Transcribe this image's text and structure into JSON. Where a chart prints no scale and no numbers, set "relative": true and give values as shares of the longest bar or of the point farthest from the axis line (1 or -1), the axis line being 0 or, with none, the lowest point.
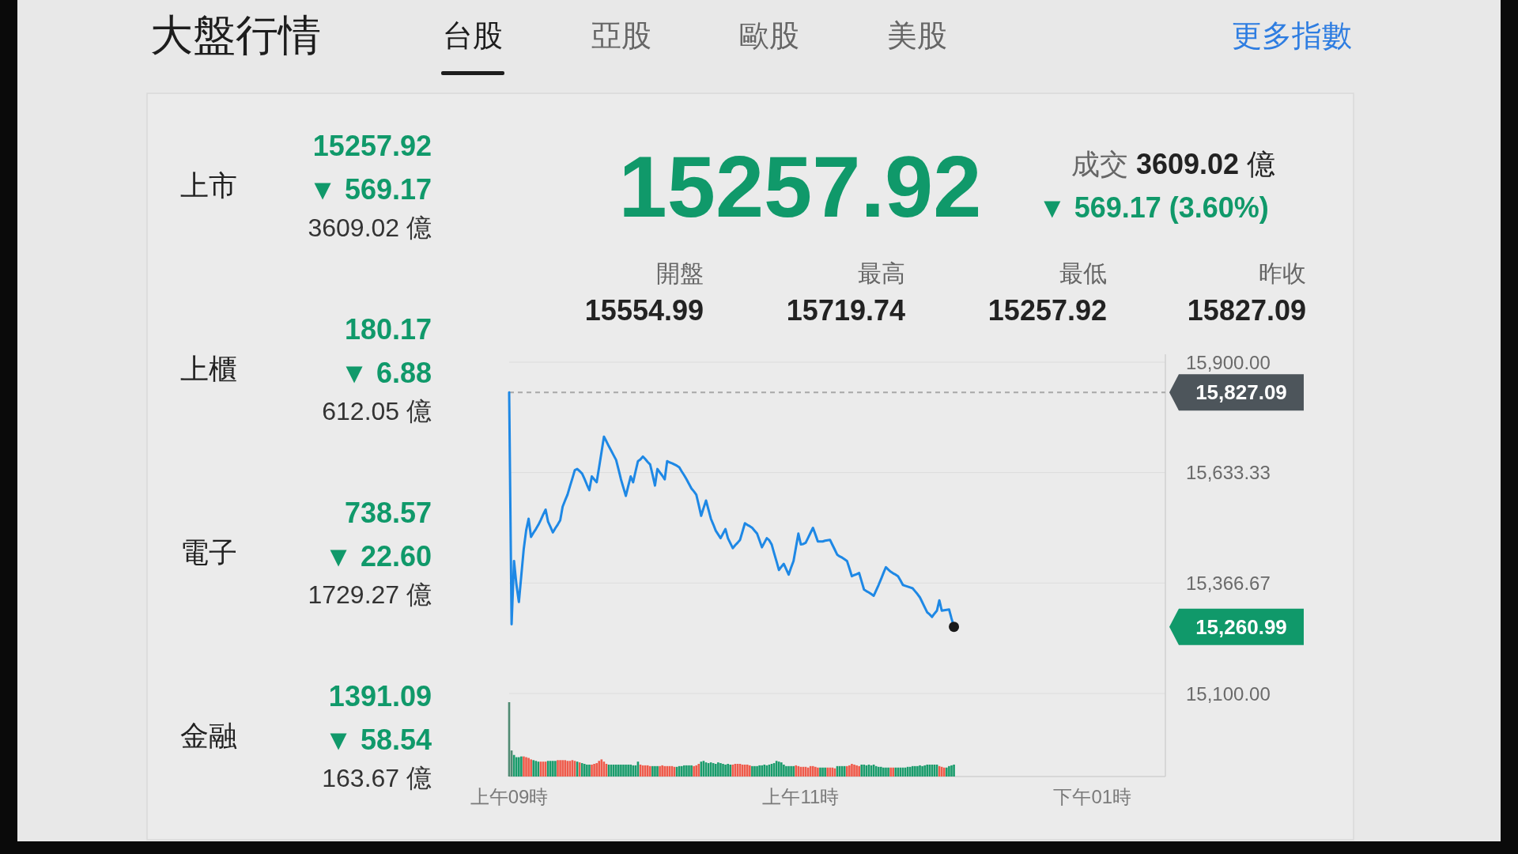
{
  "chart_data": [
    {
      "type": "other",
      "title": "大盤行情",
      "annotations": [
        "台股",
        "亞股",
        "歐股",
        "美股",
        "更多指數"
      ]
    },
    {
      "type": "other",
      "annotations": [
        "上市",
        "15257.92",
        "▼ 569.17",
        "3609.02 億",
        "上櫃",
        "180.17",
        "▼ 6.88",
        "612.05 億",
        "電子",
        "738.57",
        "▼ 22.60",
        "1729.27 億",
        "金融",
        "1391.09",
        "▼ 58.54",
        "163.67 億"
      ]
    },
    {
      "type": "other",
      "annotations": [
        "15257.92",
        "成交 3609.02 億",
        "▼ 569.17 (3.60%)",
        "開盤",
        "15554.99",
        "最高",
        "15719.74",
        "最低",
        "15257.92",
        "昨收",
        "15827.09"
      ]
    },
    {
      "type": "line",
      "color": "#1e88e5",
      "ylim": [
        15100,
        15900
      ],
      "grid": "y",
      "yticks": [
        {
          "value": 15100,
          "label": "15,100.00"
        },
        {
          "value": 15366.67,
          "label": "15,366.67"
        },
        {
          "value": 15633.33,
          "label": "15,633.33"
        },
        {
          "value": 15900,
          "label": "15,900.00"
        }
      ],
      "ref_lines": [
        {
          "axis": "y",
          "value": 15827.09,
          "label": "15,827.09",
          "color": "#a8a8a8",
          "line_style": "dashed"
        }
      ],
      "annotations": [
        "15,260.99"
      ],
      "categories": [
        null,
        null,
        null,
        null,
        null,
        null,
        null,
        null,
        null,
        null,
        null,
        null,
        null,
        null,
        null,
        null,
        null,
        null,
        null,
        null,
        null,
        null,
        null,
        null,
        null,
        null,
        null,
        null,
        null,
        null,
        null,
        null,
        null,
        null,
        null,
        null,
        null,
        null,
        null,
        null,
        null,
        null,
        null,
        null,
        null,
        null,
        null,
        null,
        null,
        null,
        null,
        null,
        null,
        null,
        null,
        null,
        null,
        null,
        null,
        null,
        null,
        null,
        null,
        null,
        null,
        null,
        null,
        null,
        null,
        null,
        null,
        null,
        null,
        null,
        null,
        null,
        null,
        null,
        null,
        null,
        null,
        null,
        null,
        null,
        null,
        null,
        null,
        null,
        null,
        null,
        null,
        null,
        null,
        null,
        null,
        null,
        null,
        null,
        null,
        null,
        null,
        null,
        null,
        null,
        null,
        null,
        null,
        null,
        null,
        null,
        null,
        null,
        null,
        null,
        null,
        null,
        null,
        null,
        null,
        null,
        null,
        null,
        null,
        null,
        null,
        null,
        null,
        null,
        null,
        null,
        null,
        null,
        null,
        null,
        null,
        null,
        null,
        null,
        null,
        null,
        null,
        null,
        null,
        null,
        null,
        null,
        null,
        null,
        null,
        null,
        null,
        null,
        null,
        null,
        null,
        null,
        null,
        null,
        null,
        null,
        null,
        null,
        null,
        null,
        null,
        null,
        null,
        null,
        null,
        null,
        null,
        null,
        null,
        null,
        null,
        null,
        null,
        null,
        null,
        null,
        null,
        null,
        null,
        null,
        null,
        null,
        null,
        null,
        null,
        null,
        null,
        null,
        null,
        null,
        null,
        null,
        null,
        null,
        null,
        null,
        null,
        null,
        null,
        null,
        null,
        null,
        null,
        null,
        null,
        null,
        null,
        null,
        null,
        null,
        null,
        null,
        null,
        null,
        null,
        null,
        null,
        null,
        null,
        null,
        null,
        null,
        null,
        null,
        null,
        null,
        null,
        null,
        null,
        null,
        null,
        null,
        null,
        null,
        null,
        null,
        null,
        null,
        null,
        null,
        null,
        null,
        null,
        null,
        null,
        null,
        null,
        null,
        null,
        null,
        null,
        null,
        null,
        null,
        null,
        null,
        null,
        null,
        null,
        null,
        null,
        null,
        null,
        null,
        null,
        null,
        null
      ],
      "values": [
        15827,
        15267,
        15420,
        15362,
        15321,
        15385,
        15449,
        15494,
        15522,
        15478,
        15488,
        15497,
        15507,
        15519,
        15532,
        15544,
        15515,
        15502,
        15489,
        15499,
        15508,
        15518,
        15551,
        15566,
        15580,
        15600,
        15619,
        15639,
        15642,
        15637,
        15631,
        15618,
        15604,
        15591,
        15624,
        15617,
        15610,
        15646,
        15683,
        15720,
        15709,
        15697,
        15686,
        15675,
        15664,
        15641,
        15617,
        15597,
        15577,
        15601,
        15624,
        15610,
        15636,
        15661,
        15665,
        15672,
        15666,
        15659,
        15653,
        15628,
        15602,
        15642,
        15634,
        15626,
        15617,
        15661,
        15658,
        15656,
        15653,
        15650,
        15646,
        15636,
        15627,
        15617,
        15606,
        15595,
        15588,
        15580,
        15555,
        15529,
        15548,
        15566,
        15544,
        15522,
        15508,
        15493,
        15484,
        15475,
        15486,
        15497,
        15475,
        15463,
        15451,
        15458,
        15464,
        15471,
        15491,
        15511,
        15507,
        15504,
        15500,
        15493,
        15486,
        15470,
        15453,
        15464,
        15475,
        15470,
        15460,
        15439,
        15419,
        15398,
        15406,
        15413,
        15400,
        15387,
        15404,
        15420,
        15453,
        15486,
        15460,
        15461,
        15464,
        15476,
        15488,
        15500,
        15484,
        15467,
        15467,
        15467,
        15469,
        15470,
        15471,
        15459,
        15447,
        15435,
        15431,
        15428,
        15424,
        15420,
        15402,
        15383,
        15386,
        15388,
        15391,
        15371,
        15351,
        15347,
        15344,
        15340,
        15336,
        15349,
        15362,
        15376,
        15391,
        15405,
        15399,
        15394,
        15390,
        15387,
        15383,
        15373,
        15362,
        15360,
        15358,
        15356,
        15354,
        15347,
        15340,
        15332,
        15320,
        15308,
        15296,
        15291,
        15285,
        15293,
        15300,
        15325,
        15300,
        15301,
        15302,
        15303,
        15281,
        15261,
        null,
        null,
        null,
        null,
        null,
        null,
        null,
        null,
        null,
        null,
        null,
        null,
        null,
        null,
        null,
        null,
        null,
        null,
        null,
        null,
        null,
        null,
        null,
        null,
        null,
        null,
        null,
        null,
        null,
        null,
        null,
        null,
        null,
        null,
        null,
        null,
        null,
        null,
        null,
        null,
        null,
        null,
        null,
        null,
        null,
        null,
        null,
        null,
        null,
        null,
        null,
        null,
        null,
        null,
        null,
        null,
        null,
        null,
        null,
        null,
        null,
        null,
        null,
        null,
        null,
        null,
        null,
        null,
        null,
        null,
        null,
        null,
        null,
        null,
        null,
        null,
        null,
        null,
        null,
        null,
        null,
        null,
        null,
        null,
        null,
        null,
        null
      ]
    },
    {
      "type": "bar",
      "relative": true,
      "categories": [
        "上午09時",
        null,
        null,
        null,
        null,
        null,
        null,
        null,
        null,
        null,
        null,
        null,
        null,
        null,
        null,
        null,
        null,
        null,
        null,
        null,
        null,
        null,
        null,
        null,
        null,
        null,
        null,
        null,
        null,
        null,
        null,
        null,
        null,
        null,
        null,
        null,
        null,
        null,
        null,
        null,
        null,
        null,
        null,
        null,
        null,
        null,
        null,
        null,
        null,
        null,
        null,
        null,
        null,
        null,
        null,
        null,
        null,
        null,
        null,
        null,
        null,
        null,
        null,
        null,
        null,
        null,
        null,
        null,
        null,
        null,
        null,
        null,
        null,
        null,
        null,
        null,
        null,
        null,
        null,
        null,
        null,
        null,
        null,
        null,
        null,
        null,
        null,
        null,
        null,
        null,
        null,
        null,
        null,
        null,
        null,
        null,
        null,
        null,
        null,
        null,
        null,
        null,
        null,
        null,
        null,
        null,
        null,
        null,
        null,
        null,
        null,
        null,
        null,
        null,
        null,
        null,
        null,
        null,
        null,
        null,
        "上午11時",
        null,
        null,
        null,
        null,
        null,
        null,
        null,
        null,
        null,
        null,
        null,
        null,
        null,
        null,
        null,
        null,
        null,
        null,
        null,
        null,
        null,
        null,
        null,
        null,
        null,
        null,
        null,
        null,
        null,
        null,
        null,
        null,
        null,
        null,
        null,
        null,
        null,
        null,
        null,
        null,
        null,
        null,
        null,
        null,
        null,
        null,
        null,
        null,
        null,
        null,
        null,
        null,
        null,
        null,
        null,
        null,
        null,
        null,
        null,
        null,
        null,
        null,
        null,
        null,
        null,
        null,
        null,
        null,
        null,
        null,
        null,
        null,
        null,
        null,
        null,
        null,
        null,
        null,
        null,
        null,
        null,
        null,
        null,
        null,
        null,
        null,
        null,
        null,
        null,
        null,
        null,
        null,
        null,
        null,
        null,
        null,
        null,
        null,
        null,
        null,
        null,
        null,
        null,
        null,
        null,
        null,
        null,
        null,
        null,
        null,
        null,
        null,
        null,
        null,
        null,
        null,
        null,
        null,
        null,
        "下午01時",
        null,
        null,
        null,
        null,
        null,
        null,
        null,
        null,
        null,
        null,
        null,
        null,
        null,
        null,
        null,
        null,
        null,
        null,
        null,
        null,
        null,
        null,
        null,
        null,
        null,
        null,
        null,
        null,
        null,
        null
      ],
      "values": [
        1,
        0.35,
        0.29,
        0.26,
        0.26,
        0.27,
        0.27,
        0.26,
        0.25,
        0.23,
        0.22,
        0.21,
        0.2,
        0.2,
        0.2,
        0.2,
        0.21,
        0.21,
        0.21,
        0.21,
        0.22,
        0.22,
        0.22,
        0.22,
        0.21,
        0.21,
        0.22,
        0.21,
        0.2,
        0.19,
        0.18,
        0.17,
        0.16,
        0.16,
        0.16,
        0.17,
        0.18,
        0.21,
        0.23,
        0.2,
        0.17,
        0.16,
        0.16,
        0.16,
        0.16,
        0.16,
        0.16,
        0.16,
        0.16,
        0.16,
        0.16,
        0.15,
        0.15,
        0.2,
        0.16,
        0.15,
        0.15,
        0.15,
        0.14,
        0.14,
        0.14,
        0.14,
        0.14,
        0.15,
        0.14,
        0.14,
        0.14,
        0.14,
        0.13,
        0.13,
        0.14,
        0.14,
        0.15,
        0.15,
        0.15,
        0.15,
        0.14,
        0.15,
        0.17,
        0.2,
        0.21,
        0.19,
        0.18,
        0.19,
        0.18,
        0.17,
        0.19,
        0.18,
        0.17,
        0.16,
        0.17,
        0.16,
        0.16,
        0.17,
        0.17,
        0.17,
        0.16,
        0.16,
        0.16,
        0.15,
        0.14,
        0.14,
        0.14,
        0.15,
        0.15,
        0.16,
        0.15,
        0.16,
        0.17,
        0.18,
        0.21,
        0.2,
        0.19,
        0.16,
        0.14,
        0.14,
        0.14,
        0.14,
        0.15,
        0.14,
        0.13,
        0.13,
        0.13,
        0.12,
        0.14,
        0.14,
        0.13,
        0.12,
        0.12,
        0.12,
        0.12,
        0.12,
        0.12,
        0.12,
        0.11,
        0.14,
        0.14,
        0.14,
        0.14,
        0.14,
        0.15,
        0.17,
        0.16,
        0.15,
        0.14,
        0.16,
        0.16,
        0.15,
        0.16,
        0.15,
        0.16,
        0.14,
        0.13,
        0.13,
        0.12,
        0.12,
        0.12,
        0.12,
        0.12,
        0.12,
        0.12,
        0.12,
        0.12,
        0.12,
        0.13,
        0.13,
        0.14,
        0.14,
        0.14,
        0.15,
        0.14,
        0.15,
        0.16,
        0.16,
        0.16,
        0.16,
        0.16,
        0.14,
        0.13,
        0.12,
        0.12,
        0.14,
        0.15,
        0.16,
        null,
        null,
        null,
        null,
        null,
        null,
        null,
        null,
        null,
        null,
        null,
        null,
        null,
        null,
        null,
        null,
        null,
        null,
        null,
        null,
        null,
        null,
        null,
        null,
        null,
        null,
        null,
        null,
        null,
        null,
        null,
        null,
        null,
        null,
        null,
        null,
        null,
        null,
        null,
        null,
        null,
        null,
        null,
        null,
        null,
        null,
        null,
        null,
        null,
        null,
        null,
        null,
        null,
        null,
        null,
        null,
        null,
        null,
        null,
        null,
        null,
        null,
        null,
        null,
        null,
        null,
        null,
        null,
        null,
        null,
        null,
        null,
        null,
        null,
        null,
        null,
        null,
        null,
        null,
        null,
        null,
        null,
        null,
        null,
        null,
        null,
        null
      ],
      "colors": [
        "#4f8a72",
        "#4f8a72",
        "#1a9c6c",
        "#1a9c6c",
        "#1a9c6c",
        "#1a9c6c",
        "#ef5b4b",
        "#ef5b4b",
        "#ef5b4b",
        "#ef5b4b",
        "#1a9c6c",
        "#1a9c6c",
        "#1a9c6c",
        "#ef5b4b",
        "#ef5b4b",
        "#ef5b4b",
        "#1a9c6c",
        "#1a9c6c",
        "#1a9c6c",
        "#1a9c6c",
        "#ef5b4b",
        "#ef5b4b",
        "#ef5b4b",
        "#ef5b4b",
        "#ef5b4b",
        "#ef5b4b",
        "#ef5b4b",
        "#ef5b4b",
        "#1a9c6c",
        "#ef5b4b",
        "#1a9c6c",
        "#1a9c6c",
        "#1a9c6c",
        "#1a9c6c",
        "#ef5b4b",
        "#ef5b4b",
        "#ef5b4b",
        "#ef5b4b",
        "#ef5b4b",
        "#ef5b4b",
        "#ef5b4b",
        "#1a9c6c",
        "#1a9c6c",
        "#1a9c6c",
        "#1a9c6c",
        "#1a9c6c",
        "#1a9c6c",
        "#1a9c6c",
        "#1a9c6c",
        "#1a9c6c",
        "#1a9c6c",
        "#1a9c6c",
        "#1a9c6c",
        "#1a9c6c",
        "#ef5b4b",
        "#ef5b4b",
        "#ef5b4b",
        "#ef5b4b",
        "#ef5b4b",
        "#1a9c6c",
        "#1a9c6c",
        "#1a9c6c",
        "#ef5b4b",
        "#ef5b4b",
        "#ef5b4b",
        "#ef5b4b",
        "#ef5b4b",
        "#ef5b4b",
        "#ef5b4b",
        "#1a9c6c",
        "#1a9c6c",
        "#1a9c6c",
        "#1a9c6c",
        "#1a9c6c",
        "#1a9c6c",
        "#1a9c6c",
        "#ef5b4b",
        "#ef5b4b",
        "#ef5b4b",
        "#1a9c6c",
        "#1a9c6c",
        "#1a9c6c",
        "#1a9c6c",
        "#1a9c6c",
        "#1a9c6c",
        "#1a9c6c",
        "#1a9c6c",
        "#1a9c6c",
        "#1a9c6c",
        "#1a9c6c",
        "#1a9c6c",
        "#1a9c6c",
        "#ef5b4b",
        "#ef5b4b",
        "#ef5b4b",
        "#ef5b4b",
        "#ef5b4b",
        "#ef5b4b",
        "#ef5b4b",
        "#ef5b4b",
        "#1a9c6c",
        "#1a9c6c",
        "#1a9c6c",
        "#1a9c6c",
        "#1a9c6c",
        "#1a9c6c",
        "#1a9c6c",
        "#1a9c6c",
        "#1a9c6c",
        "#1a9c6c",
        "#1a9c6c",
        "#1a9c6c",
        "#1a9c6c",
        "#1a9c6c",
        "#1a9c6c",
        "#1a9c6c",
        "#1a9c6c",
        "#1a9c6c",
        "#ef5b4b",
        "#ef5b4b",
        "#ef5b4b",
        "#ef5b4b",
        "#ef5b4b",
        "#ef5b4b",
        "#ef5b4b",
        "#ef5b4b",
        "#ef5b4b",
        "#ef5b4b",
        "#1a9c6c",
        "#1a9c6c",
        "#1a9c6c",
        "#ef5b4b",
        "#ef5b4b",
        "#ef5b4b",
        "#ef5b4b",
        "#1a9c6c",
        "#1a9c6c",
        "#1a9c6c",
        "#1a9c6c",
        "#ef5b4b",
        "#ef5b4b",
        "#ef5b4b",
        "#ef5b4b",
        "#ef5b4b",
        "#ef5b4b",
        "#1a9c6c",
        "#1a9c6c",
        "#1a9c6c",
        "#1a9c6c",
        "#1a9c6c",
        "#1a9c6c",
        "#1a9c6c",
        "#1a9c6c",
        "#1a9c6c",
        "#1a9c6c",
        "#1a9c6c",
        "#1a9c6c",
        "#ef5b4b",
        "#ef5b4b",
        "#1a9c6c",
        "#1a9c6c",
        "#1a9c6c",
        "#1a9c6c",
        "#1a9c6c",
        "#1a9c6c",
        "#1a9c6c",
        "#1a9c6c",
        "#1a9c6c",
        "#1a9c6c",
        "#1a9c6c",
        "#1a9c6c",
        "#1a9c6c",
        "#1a9c6c",
        "#1a9c6c",
        "#1a9c6c",
        "#1a9c6c",
        "#1a9c6c",
        "#ef5b4b",
        "#ef5b4b",
        "#ef5b4b",
        "#1a9c6c",
        "#1a9c6c",
        "#1a9c6c",
        "#1a9c6c",
        null,
        null,
        null,
        null,
        null,
        null,
        null,
        null,
        null,
        null,
        null,
        null,
        null,
        null,
        null,
        null,
        null,
        null,
        null,
        null,
        null,
        null,
        null,
        null,
        null,
        null,
        null,
        null,
        null,
        null,
        null,
        null,
        null,
        null,
        null,
        null,
        null,
        null,
        null,
        null,
        null,
        null,
        null,
        null,
        null,
        null,
        null,
        null,
        null,
        null,
        null,
        null,
        null,
        null,
        null,
        null,
        null,
        null,
        null,
        null,
        null,
        null,
        null,
        null,
        null,
        null,
        null,
        null,
        null,
        null,
        null,
        null,
        null,
        null,
        null,
        null,
        null,
        null,
        null,
        null,
        null,
        null,
        null,
        null,
        null,
        null,
        null
      ]
    }
  ]
}
